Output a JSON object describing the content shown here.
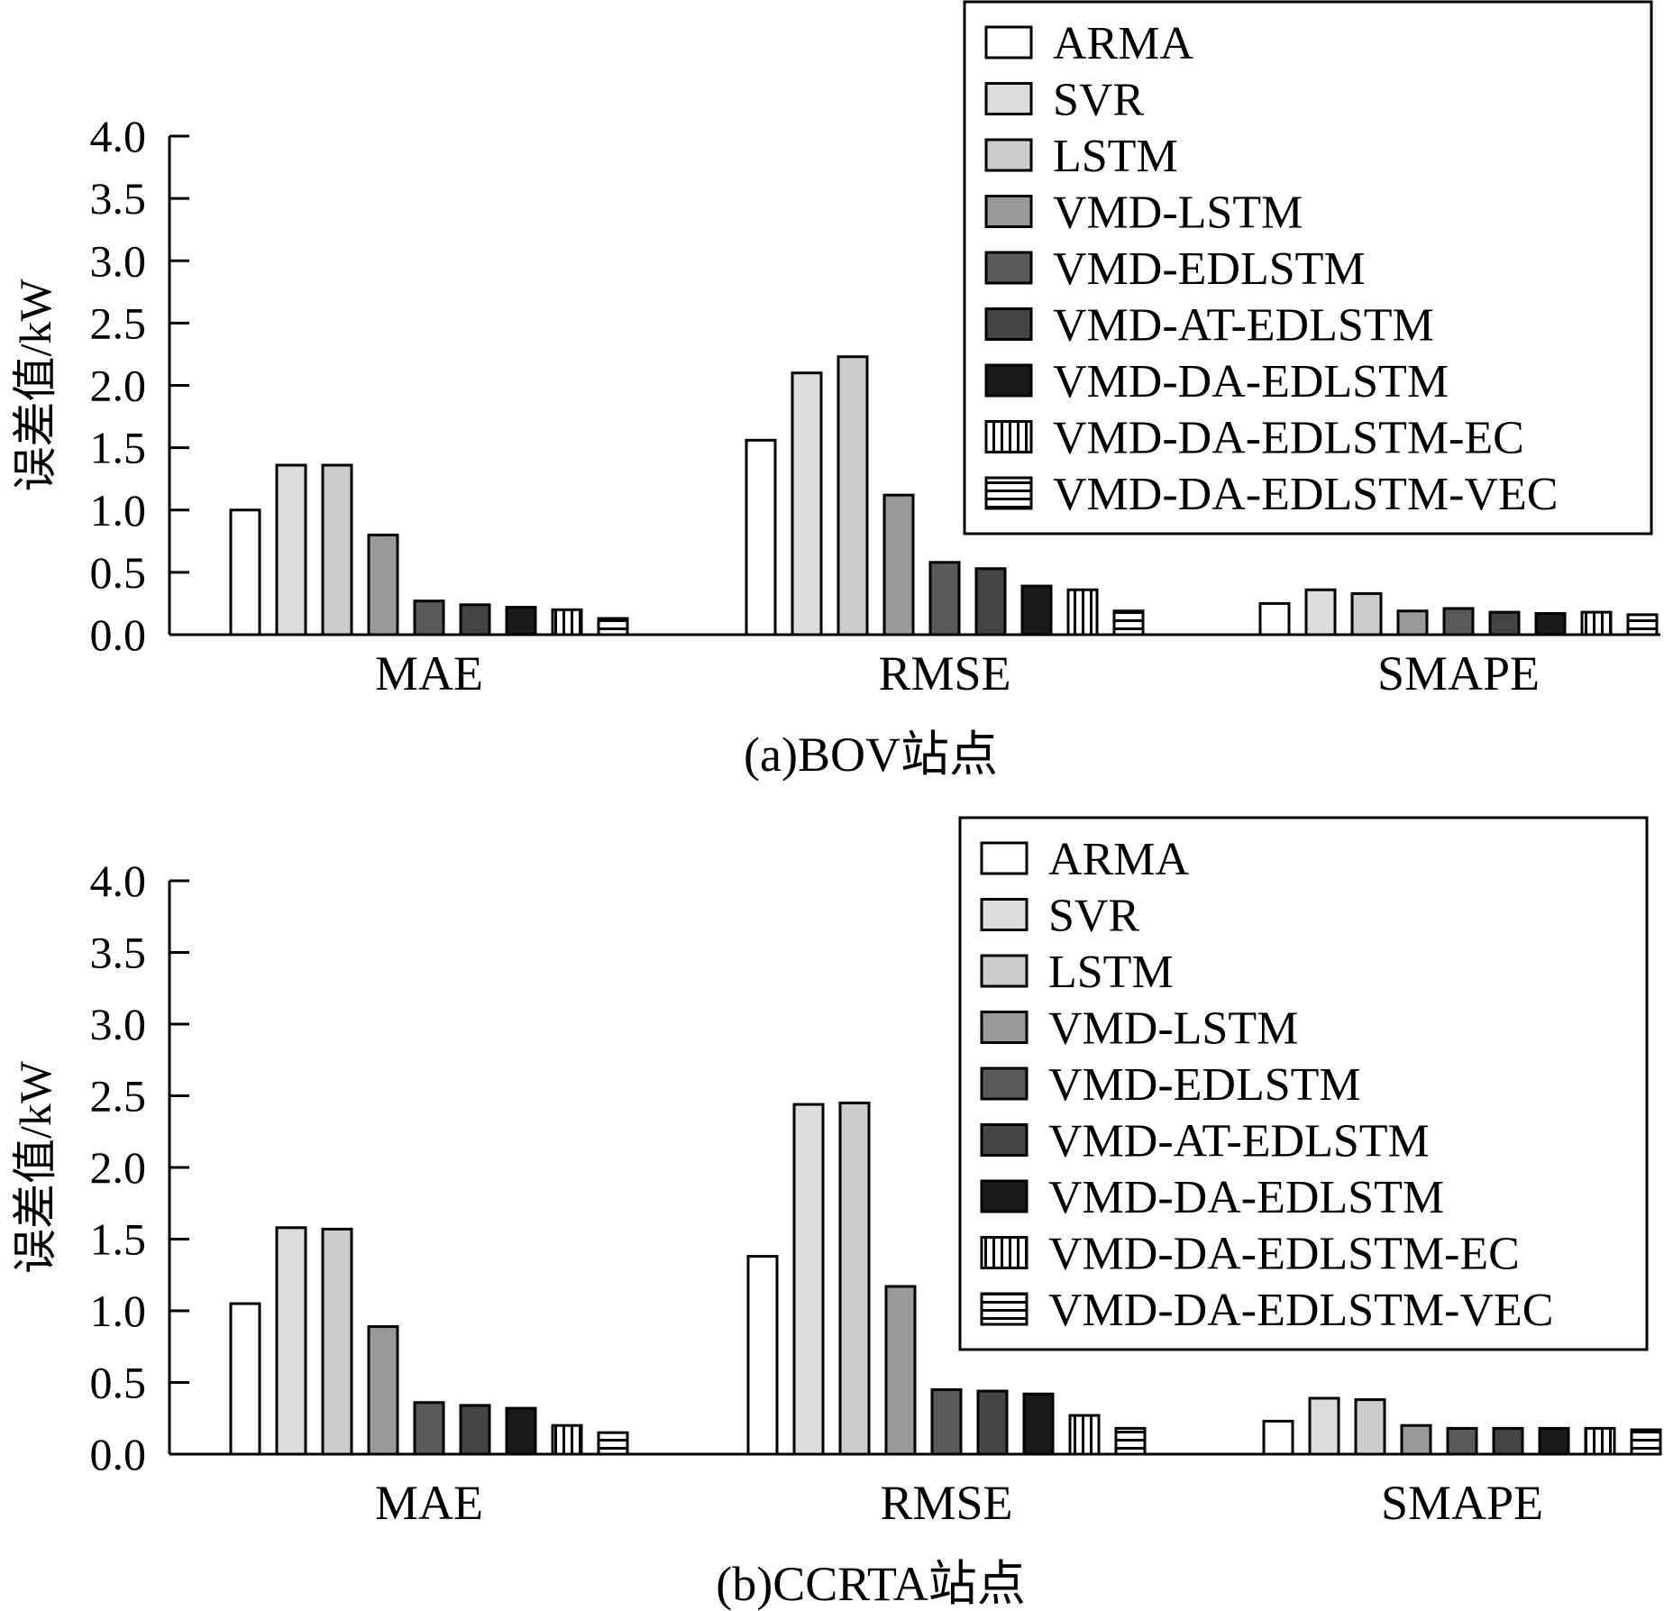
{
  "chart_data": [
    {
      "type": "bar",
      "caption": "(a)BOV站点",
      "ylabel": "误差值/kW",
      "ylim": [
        0,
        4.0
      ],
      "yticks": [
        "0.0",
        "0.5",
        "1.0",
        "1.5",
        "2.0",
        "2.5",
        "3.0",
        "3.5",
        "4.0"
      ],
      "categories": [
        "MAE",
        "RMSE",
        "SMAPE"
      ],
      "legend_position": "top-right",
      "series": [
        {
          "name": "ARMA",
          "fill": "#ffffff",
          "pattern": "none",
          "values": [
            1.0,
            1.56,
            0.25
          ]
        },
        {
          "name": "SVR",
          "fill": "#dcdcdc",
          "pattern": "none",
          "values": [
            1.36,
            2.1,
            0.36
          ]
        },
        {
          "name": "LSTM",
          "fill": "#cccccc",
          "pattern": "none",
          "values": [
            1.36,
            2.23,
            0.33
          ]
        },
        {
          "name": "VMD-LSTM",
          "fill": "#999999",
          "pattern": "none",
          "values": [
            0.8,
            1.12,
            0.19
          ]
        },
        {
          "name": "VMD-EDLSTM",
          "fill": "#5a5a5a",
          "pattern": "none",
          "values": [
            0.27,
            0.58,
            0.21
          ]
        },
        {
          "name": "VMD-AT-EDLSTM",
          "fill": "#444444",
          "pattern": "none",
          "values": [
            0.24,
            0.53,
            0.18
          ]
        },
        {
          "name": "VMD-DA-EDLSTM",
          "fill": "#1a1a1a",
          "pattern": "none",
          "values": [
            0.22,
            0.39,
            0.17
          ]
        },
        {
          "name": "VMD-DA-EDLSTM-EC",
          "fill": "#ffffff",
          "pattern": "vertical",
          "values": [
            0.2,
            0.36,
            0.18
          ]
        },
        {
          "name": "VMD-DA-EDLSTM-VEC",
          "fill": "#ffffff",
          "pattern": "horizontal",
          "values": [
            0.13,
            0.19,
            0.16
          ]
        }
      ]
    },
    {
      "type": "bar",
      "caption": "(b)CCRTA站点",
      "ylabel": "误差值/kW",
      "ylim": [
        0,
        4.0
      ],
      "yticks": [
        "0.0",
        "0.5",
        "1.0",
        "1.5",
        "2.0",
        "2.5",
        "3.0",
        "3.5",
        "4.0"
      ],
      "categories": [
        "MAE",
        "RMSE",
        "SMAPE"
      ],
      "legend_position": "top-right",
      "series": [
        {
          "name": "ARMA",
          "fill": "#ffffff",
          "pattern": "none",
          "values": [
            1.05,
            1.38,
            0.23
          ]
        },
        {
          "name": "SVR",
          "fill": "#dcdcdc",
          "pattern": "none",
          "values": [
            1.58,
            2.44,
            0.39
          ]
        },
        {
          "name": "LSTM",
          "fill": "#cccccc",
          "pattern": "none",
          "values": [
            1.57,
            2.45,
            0.38
          ]
        },
        {
          "name": "VMD-LSTM",
          "fill": "#999999",
          "pattern": "none",
          "values": [
            0.89,
            1.17,
            0.2
          ]
        },
        {
          "name": "VMD-EDLSTM",
          "fill": "#5a5a5a",
          "pattern": "none",
          "values": [
            0.36,
            0.45,
            0.18
          ]
        },
        {
          "name": "VMD-AT-EDLSTM",
          "fill": "#444444",
          "pattern": "none",
          "values": [
            0.34,
            0.44,
            0.18
          ]
        },
        {
          "name": "VMD-DA-EDLSTM",
          "fill": "#1a1a1a",
          "pattern": "none",
          "values": [
            0.32,
            0.42,
            0.18
          ]
        },
        {
          "name": "VMD-DA-EDLSTM-EC",
          "fill": "#ffffff",
          "pattern": "vertical",
          "values": [
            0.2,
            0.27,
            0.18
          ]
        },
        {
          "name": "VMD-DA-EDLSTM-VEC",
          "fill": "#ffffff",
          "pattern": "horizontal",
          "values": [
            0.15,
            0.18,
            0.17
          ]
        }
      ]
    }
  ]
}
